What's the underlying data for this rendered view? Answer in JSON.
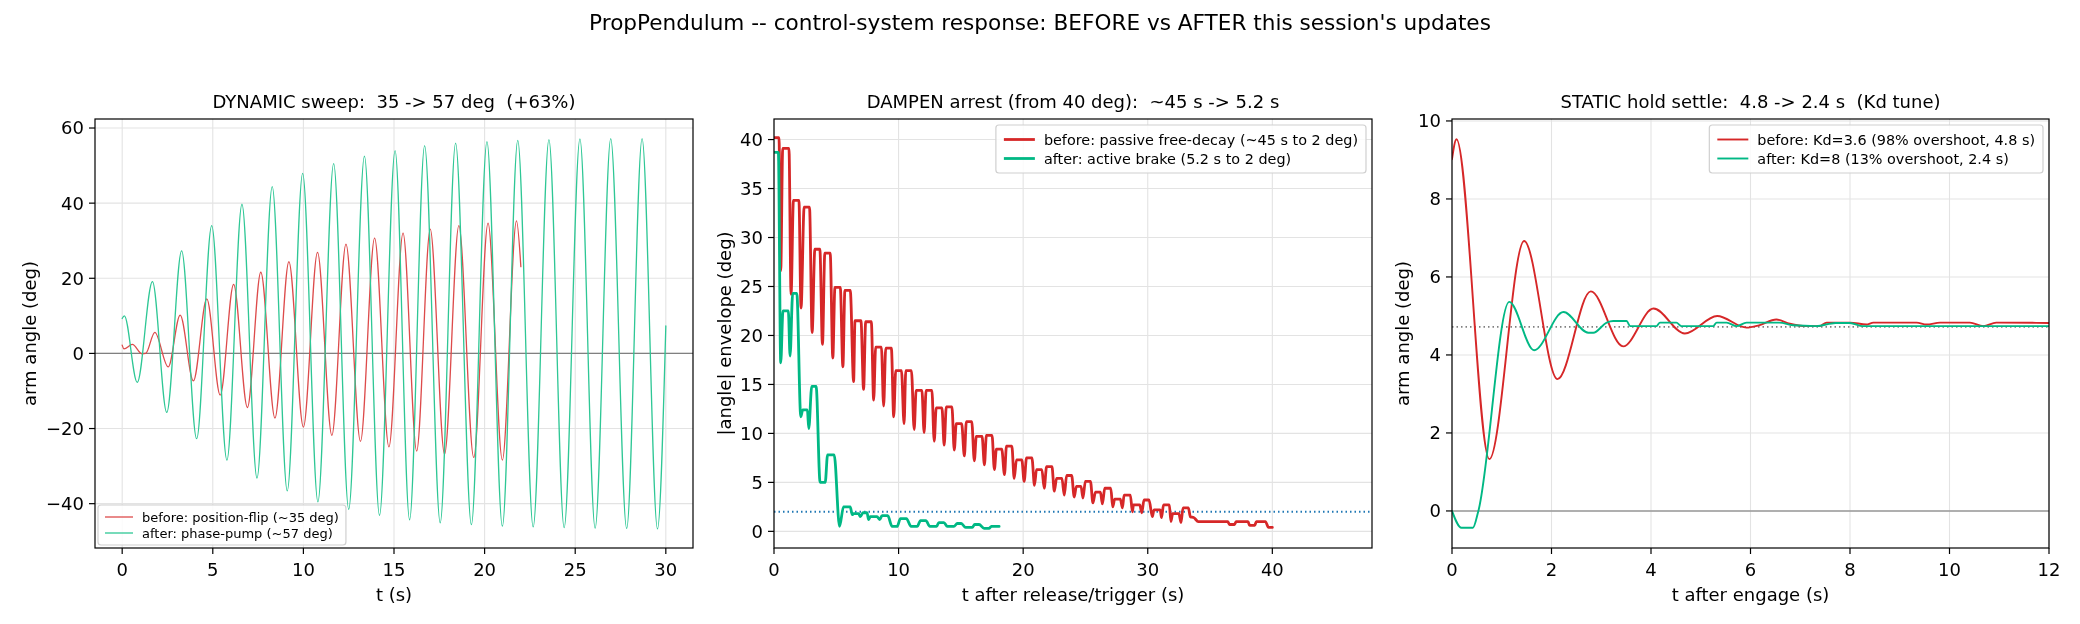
{
  "chart_data": [
    {
      "type": "other",
      "title": "PropPendulum -- control-system response: BEFORE vs AFTER this session's updates"
    },
    {
      "type": "line",
      "title": "DYNAMIC sweep:  35 -> 57 deg  (+63%)",
      "xlabel": "t (s)",
      "ylabel": "arm angle (deg)",
      "xlim": [
        -1.5,
        31.5
      ],
      "ylim": [
        -51.8,
        62.4
      ],
      "xticks": [
        0,
        5,
        10,
        15,
        20,
        25,
        30
      ],
      "yticks": [
        {
          "value": -40,
          "label": "−40"
        },
        {
          "value": -20,
          "label": "−20"
        },
        0,
        20,
        40,
        60
      ],
      "grid": true,
      "legend": "bottom left",
      "ref_lines": [
        {
          "axis": "y",
          "value": 0,
          "color": "#808080"
        }
      ],
      "series": [
        {
          "name": "before: position-flip (~35 deg)",
          "color": "#dd4b4b",
          "x": [
            0,
            0.1,
            0.56,
            1.1,
            1.3,
            1.8,
            2.54,
            3.2,
            3.93,
            4.67,
            5.41,
            6.15,
            6.91,
            7.65,
            8.43,
            9.2,
            10.0,
            10.78,
            11.57,
            12.35,
            13.15,
            13.93,
            14.72,
            15.5,
            16.25,
            17.0,
            17.79,
            18.58,
            19.4,
            20.19,
            20.98,
            21.76,
            22.0
          ],
          "values": [
            2.2,
            1.2,
            2.4,
            -0.1,
            0,
            5.6,
            -3.6,
            10.2,
            -7.3,
            14.5,
            -11.1,
            18.4,
            -14.4,
            21.6,
            -17.2,
            24.4,
            -19.6,
            26.9,
            -21.8,
            29.1,
            -23.4,
            30.7,
            -24.9,
            32.0,
            -26.0,
            33.1,
            -26.8,
            34.0,
            -27.7,
            34.7,
            -28.4,
            35.3,
            23.1
          ]
        },
        {
          "name": "after: phase-pump (~57 deg)",
          "color": "#2ec795",
          "x": [
            0,
            0.12,
            0.83,
            1.67,
            2.46,
            3.28,
            4.11,
            4.94,
            5.78,
            6.61,
            7.44,
            8.28,
            9.11,
            9.96,
            10.8,
            11.67,
            12.5,
            13.37,
            14.2,
            15.06,
            15.86,
            16.69,
            17.55,
            18.4,
            19.27,
            20.13,
            20.98,
            21.83,
            22.68,
            23.55,
            24.39,
            25.26,
            26.1,
            26.96,
            27.84,
            28.69,
            29.54,
            30
          ],
          "values": [
            9.3,
            10.0,
            -7.7,
            19.1,
            -15.7,
            27.3,
            -22.7,
            34.0,
            -28.4,
            39.7,
            -33.2,
            44.4,
            -36.6,
            47.9,
            -39.5,
            50.5,
            -41.5,
            52.5,
            -43.1,
            54.0,
            -44.3,
            55.3,
            -45.1,
            56.0,
            -45.6,
            56.4,
            -46.0,
            56.7,
            -46.2,
            56.9,
            -46.4,
            57.1,
            -46.5,
            57.2,
            -46.6,
            57.2,
            -46.7,
            7.3
          ]
        }
      ]
    },
    {
      "type": "line",
      "title": "DAMPEN arrest (from 40 deg):  ~45 s -> 5.2 s",
      "xlabel": "t after release/trigger (s)",
      "ylabel": "|angle| envelope (deg)",
      "xlim": [
        0,
        48
      ],
      "ylim": [
        -1.7,
        42.1
      ],
      "xticks": [
        0,
        10,
        20,
        30,
        40
      ],
      "yticks": [
        0,
        5,
        10,
        15,
        20,
        25,
        30,
        35,
        40
      ],
      "grid": true,
      "legend": "top right",
      "ref_lines": [
        {
          "axis": "y",
          "value": 2,
          "color": "#1f77b4",
          "line_style": "dotted"
        }
      ],
      "series": [
        {
          "name": "before: passive free-decay (~45 s to 2 deg)",
          "color": "#d62728",
          "x": [
            0.05,
            0.4,
            0.54,
            0.7,
            1.2,
            1.37,
            1.56,
            2.0,
            2.17,
            2.42,
            2.85,
            3.06,
            3.28,
            3.68,
            3.89,
            4.08,
            4.51,
            4.72,
            4.89,
            5.32,
            5.53,
            5.69,
            6.12,
            6.39,
            6.5,
            6.98,
            7.19,
            7.36,
            7.81,
            8.0,
            8.16,
            8.62,
            8.8,
            8.97,
            9.42,
            9.61,
            9.77,
            10.23,
            10.44,
            10.58,
            11.03,
            11.25,
            11.41,
            11.87,
            12.05,
            12.21,
            12.67,
            12.86,
            13.02,
            13.48,
            13.66,
            13.83,
            14.28,
            14.47,
            14.63,
            15.06,
            15.28,
            15.44,
            15.87,
            16.08,
            16.24,
            16.7,
            16.89,
            17.05,
            17.5,
            17.69,
            17.85,
            18.28,
            18.5,
            18.66,
            19.09,
            19.28,
            19.46,
            19.89,
            20.08,
            20.27,
            20.7,
            20.91,
            21.07,
            21.5,
            21.69,
            21.88,
            22.31,
            22.5,
            22.68,
            23.11,
            23.3,
            23.49,
            23.89,
            24.1,
            24.27,
            24.64,
            24.8,
            24.99,
            25.4,
            25.6,
            25.8,
            26.2,
            26.36,
            26.55,
            27.03,
            27.19,
            27.35,
            27.8,
            27.97,
            28.1,
            28.6,
            28.77,
            28.85,
            29.36,
            29.52,
            29.7,
            30.1,
            30.37,
            30.5,
            31.0,
            31.1,
            31.27,
            31.73,
            31.86,
            32.0,
            32.5,
            32.67,
            32.83,
            33.26,
            33.42,
            33.7,
            34.06,
            36.42,
            36.56,
            36.96,
            37.1,
            38.05,
            38.18,
            38.58,
            38.72,
            39.44,
            39.7,
            40.0
          ],
          "values": [
            40.2,
            40.2,
            26.6,
            39.1,
            39.1,
            24.2,
            33.8,
            33.8,
            22.8,
            33.1,
            33.1,
            20.3,
            28.8,
            28.8,
            19.1,
            28.4,
            28.4,
            17.7,
            24.9,
            24.9,
            16.8,
            24.6,
            24.6,
            15.3,
            21.5,
            21.5,
            14.5,
            21.4,
            21.4,
            13.4,
            18.8,
            18.8,
            12.8,
            18.7,
            18.7,
            11.7,
            16.4,
            16.4,
            11.0,
            16.4,
            16.4,
            10.4,
            14.4,
            14.4,
            10.1,
            14.4,
            14.4,
            9.2,
            12.6,
            12.6,
            8.8,
            12.7,
            12.7,
            8.3,
            11.0,
            11.0,
            7.7,
            11.2,
            11.2,
            7.2,
            9.7,
            9.7,
            6.8,
            9.8,
            9.8,
            6.3,
            8.4,
            8.4,
            5.8,
            8.7,
            8.7,
            5.4,
            7.3,
            7.3,
            5.1,
            7.5,
            7.5,
            4.7,
            6.3,
            6.3,
            4.4,
            6.6,
            6.6,
            4.1,
            5.4,
            5.4,
            3.7,
            5.7,
            5.7,
            3.5,
            4.6,
            4.6,
            3.4,
            5.1,
            5.1,
            2.9,
            4.0,
            4.0,
            2.8,
            4.4,
            4.4,
            2.5,
            3.3,
            3.3,
            2.4,
            3.7,
            3.7,
            2.0,
            2.7,
            2.7,
            1.9,
            3.2,
            3.2,
            1.5,
            2.2,
            2.2,
            1.4,
            2.7,
            2.7,
            1.0,
            1.8,
            1.8,
            0.9,
            2.4,
            2.4,
            1.5,
            1.4,
            1.0,
            1.0,
            0.7,
            0.7,
            1.0,
            1.0,
            0.6,
            0.6,
            1.0,
            1.0,
            0.4,
            0.4
          ]
        },
        {
          "name": "after: active brake (5.2 s to 2 deg)",
          "color": "#00b884",
          "x": [
            0.05,
            0.35,
            0.54,
            0.72,
            1.15,
            1.29,
            1.5,
            1.83,
            2.15,
            2.31,
            2.68,
            2.79,
            3.03,
            3.38,
            3.7,
            4.11,
            4.3,
            4.83,
            5.26,
            5.58,
            6.12,
            6.28,
            6.39,
            6.79,
            6.93,
            7.14,
            7.46,
            7.6,
            7.73,
            8.27,
            8.48,
            8.67,
            9.13,
            9.48,
            9.88,
            10.15,
            10.63,
            11.0,
            11.49,
            11.76,
            12.19,
            12.51,
            13.05,
            13.23,
            13.64,
            13.91,
            14.44,
            14.71,
            15.03,
            15.38,
            15.92,
            16.11,
            16.46,
            16.86,
            17.26,
            17.45,
            18.07
          ],
          "values": [
            38.7,
            38.7,
            17.2,
            22.5,
            22.5,
            17.9,
            24.3,
            24.3,
            11.7,
            12.4,
            12.4,
            10.5,
            14.8,
            14.8,
            5.0,
            5.0,
            7.8,
            7.8,
            0.5,
            2.5,
            2.5,
            1.7,
            1.8,
            1.8,
            1.5,
            1.9,
            1.9,
            1.2,
            1.5,
            1.5,
            1.2,
            1.6,
            1.6,
            0.5,
            0.5,
            1.3,
            1.3,
            0.5,
            0.5,
            1.1,
            1.1,
            0.5,
            0.5,
            0.9,
            0.9,
            0.5,
            0.5,
            0.8,
            0.8,
            0.4,
            0.4,
            0.7,
            0.7,
            0.3,
            0.3,
            0.5,
            0.5
          ]
        }
      ]
    },
    {
      "type": "line",
      "title": "STATIC hold settle:  4.8 -> 2.4 s  (Kd tune)",
      "xlabel": "t after engage (s)",
      "ylabel": "arm angle (deg)",
      "xlim": [
        0,
        12
      ],
      "ylim": [
        -0.95,
        10.05
      ],
      "xticks": [
        0,
        2,
        4,
        6,
        8,
        10,
        12
      ],
      "yticks": [
        0,
        2,
        4,
        6,
        8,
        10
      ],
      "grid": true,
      "legend": "top right",
      "ref_lines": [
        {
          "axis": "y",
          "value": 0,
          "color": "#999999"
        },
        {
          "axis": "y",
          "value": 4.72,
          "color": "#808080",
          "line_style": "dotted"
        }
      ],
      "series": [
        {
          "name": "before: Kd=3.6 (98% overshoot, 4.8 s)",
          "color": "#d62728",
          "x": [
            0,
            0.09,
            0.75,
            1.45,
            2.12,
            2.79,
            3.44,
            4.05,
            4.68,
            5.33,
            5.92,
            6.17,
            6.52,
            6.79,
            7.12,
            7.39,
            7.53,
            8.0,
            8.33,
            8.47,
            9.34,
            9.54,
            9.81,
            10.41,
            10.68,
            10.94,
            12
          ],
          "values": [
            9.02,
            9.53,
            1.33,
            6.92,
            3.38,
            5.63,
            4.22,
            5.19,
            4.55,
            5.0,
            4.7,
            4.76,
            4.91,
            4.8,
            4.74,
            4.74,
            4.83,
            4.83,
            4.78,
            4.83,
            4.83,
            4.78,
            4.83,
            4.83,
            4.74,
            4.83,
            4.82
          ]
        },
        {
          "name": "after: Kd=8 (13% overshoot, 2.4 s)",
          "color": "#00b884",
          "x": [
            0,
            0.19,
            0.42,
            0.53,
            1.15,
            1.65,
            2.24,
            2.74,
            2.84,
            3.11,
            3.24,
            3.51,
            3.58,
            4.11,
            4.18,
            4.51,
            4.61,
            5.25,
            5.32,
            5.52,
            5.72,
            5.92,
            6.58,
            6.85,
            7.32,
            7.71,
            8.0,
            8.26,
            12
          ],
          "values": [
            0,
            -0.43,
            -0.43,
            0,
            5.36,
            4.12,
            5.1,
            4.57,
            4.57,
            4.83,
            4.87,
            4.87,
            4.74,
            4.74,
            4.83,
            4.83,
            4.74,
            4.74,
            4.83,
            4.83,
            4.74,
            4.83,
            4.83,
            4.76,
            4.74,
            4.82,
            4.82,
            4.74,
            4.74
          ]
        }
      ]
    }
  ]
}
